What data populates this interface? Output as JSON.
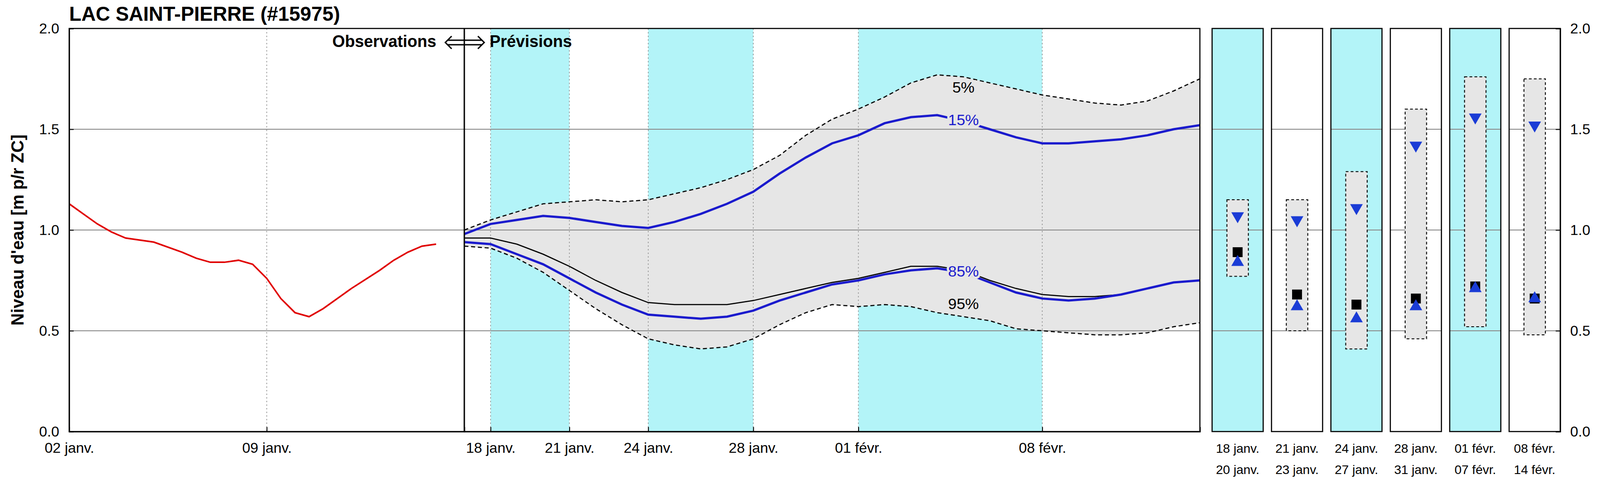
{
  "chart_data": [
    {
      "type": "line",
      "title": "LAC SAINT-PIERRE (#15975)",
      "y_label": "Niveau d'eau [m p/r ZC]",
      "annotation": "Observations",
      "x": [
        2,
        2.5,
        3,
        3.5,
        4,
        5,
        6,
        6.5,
        7,
        7.5,
        8,
        8.5,
        9,
        9.5,
        10,
        10.5,
        11,
        12,
        13,
        13.5,
        14,
        14.5,
        15
      ],
      "series": [
        {
          "color": "#e00000",
          "values": [
            1.13,
            1.08,
            1.03,
            0.99,
            0.96,
            0.94,
            0.89,
            0.86,
            0.84,
            0.84,
            0.85,
            0.83,
            0.76,
            0.66,
            0.59,
            0.57,
            0.61,
            0.71,
            0.8,
            0.85,
            0.89,
            0.92,
            0.93
          ]
        }
      ],
      "xlim": [
        2,
        16
      ],
      "xticks": [
        {
          "value": 2,
          "label": "02 janv."
        },
        {
          "value": 9,
          "label": "09 janv."
        }
      ],
      "ylim": [
        0,
        2
      ],
      "yticks": [
        {
          "value": 0,
          "label": "0.0"
        },
        {
          "value": 0.5,
          "label": "0.5"
        },
        {
          "value": 1,
          "label": "1.0"
        },
        {
          "value": 1.5,
          "label": "1.5"
        },
        {
          "value": 2,
          "label": "2.0"
        }
      ],
      "grid": true
    },
    {
      "type": "line",
      "annotation": "Prévisions",
      "x": [
        17,
        18,
        19,
        20,
        21,
        22,
        23,
        24,
        25,
        26,
        27,
        28,
        29,
        30,
        31,
        32,
        33,
        34,
        35,
        36,
        37,
        38,
        39,
        40,
        41,
        42,
        43,
        44,
        45
      ],
      "series": [
        {
          "name": "5%",
          "color": "#000000",
          "line_style": "dashed",
          "values": [
            1.0,
            1.05,
            1.09,
            1.13,
            1.14,
            1.15,
            1.14,
            1.15,
            1.18,
            1.21,
            1.25,
            1.3,
            1.37,
            1.47,
            1.55,
            1.6,
            1.66,
            1.73,
            1.77,
            1.76,
            1.73,
            1.7,
            1.67,
            1.65,
            1.63,
            1.62,
            1.64,
            1.69,
            1.75
          ]
        },
        {
          "name": "15%",
          "color": "#1a1acd",
          "line_style": "solid",
          "values": [
            0.98,
            1.03,
            1.05,
            1.07,
            1.06,
            1.04,
            1.02,
            1.01,
            1.04,
            1.08,
            1.13,
            1.19,
            1.28,
            1.36,
            1.43,
            1.47,
            1.53,
            1.56,
            1.57,
            1.54,
            1.5,
            1.46,
            1.43,
            1.43,
            1.44,
            1.45,
            1.47,
            1.5,
            1.52
          ]
        },
        {
          "color": "#000000",
          "line_style": "solid",
          "values": [
            0.96,
            0.96,
            0.93,
            0.88,
            0.82,
            0.75,
            0.69,
            0.64,
            0.63,
            0.63,
            0.63,
            0.65,
            0.68,
            0.71,
            0.74,
            0.76,
            0.79,
            0.82,
            0.82,
            0.8,
            0.75,
            0.71,
            0.68,
            0.67,
            0.67,
            0.68,
            0.71,
            0.74,
            0.75
          ]
        },
        {
          "name": "85%",
          "color": "#1a1acd",
          "line_style": "solid",
          "values": [
            0.94,
            0.93,
            0.88,
            0.83,
            0.76,
            0.69,
            0.63,
            0.58,
            0.57,
            0.56,
            0.57,
            0.6,
            0.65,
            0.69,
            0.73,
            0.75,
            0.78,
            0.8,
            0.81,
            0.79,
            0.74,
            0.69,
            0.66,
            0.65,
            0.66,
            0.68,
            0.71,
            0.74,
            0.75
          ]
        },
        {
          "name": "95%",
          "color": "#000000",
          "line_style": "dashed",
          "values": [
            0.92,
            0.91,
            0.86,
            0.79,
            0.7,
            0.61,
            0.53,
            0.46,
            0.43,
            0.41,
            0.42,
            0.46,
            0.53,
            0.59,
            0.63,
            0.62,
            0.63,
            0.62,
            0.59,
            0.57,
            0.55,
            0.51,
            0.5,
            0.49,
            0.48,
            0.48,
            0.49,
            0.52,
            0.54
          ]
        }
      ],
      "periods": [
        [
          18,
          21
        ],
        [
          24,
          28
        ],
        [
          32,
          39
        ]
      ],
      "xlim": [
        17,
        45
      ],
      "xticks": [
        {
          "value": 18,
          "label": "18 janv."
        },
        {
          "value": 21,
          "label": "21 janv."
        },
        {
          "value": 24,
          "label": "24 janv."
        },
        {
          "value": 28,
          "label": "28 janv."
        },
        {
          "value": 32,
          "label": "01 févr."
        },
        {
          "value": 39,
          "label": "08 févr."
        }
      ],
      "ylim": [
        0,
        2
      ],
      "yticks": [
        {
          "value": 0,
          "label": "0.0"
        },
        {
          "value": 0.5,
          "label": "0.5"
        },
        {
          "value": 1,
          "label": "1.0"
        },
        {
          "value": 1.5,
          "label": "1.5"
        },
        {
          "value": 2,
          "label": "2.0"
        }
      ],
      "grid": true
    },
    {
      "type": "box",
      "categories": [
        [
          "18 janv.",
          "20 janv."
        ],
        [
          "21 janv.",
          "23 janv."
        ],
        [
          "24 janv.",
          "27 janv."
        ],
        [
          "28 janv.",
          "31 janv."
        ],
        [
          "01 févr.",
          "07 févr."
        ],
        [
          "08 févr.",
          "14 févr."
        ]
      ],
      "q05": [
        1.15,
        1.15,
        1.29,
        1.6,
        1.76,
        1.75
      ],
      "q15": [
        1.07,
        1.05,
        1.11,
        1.42,
        1.56,
        1.52
      ],
      "q50": [
        0.89,
        0.68,
        0.63,
        0.66,
        0.72,
        0.66
      ],
      "q85": [
        0.84,
        0.62,
        0.56,
        0.62,
        0.71,
        0.66
      ],
      "q95": [
        0.77,
        0.5,
        0.41,
        0.46,
        0.52,
        0.48
      ],
      "colors": [
        "#b3f4f8",
        "#ffffff",
        "#b3f4f8",
        "#ffffff",
        "#b3f4f8",
        "#ffffff"
      ],
      "ylim": [
        0,
        2
      ],
      "yticks": [
        {
          "value": 0,
          "label": "0.0"
        },
        {
          "value": 0.5,
          "label": "0.5"
        },
        {
          "value": 1,
          "label": "1.0"
        },
        {
          "value": 1.5,
          "label": "1.5"
        },
        {
          "value": 2,
          "label": "2.0"
        }
      ],
      "grid": true
    }
  ]
}
